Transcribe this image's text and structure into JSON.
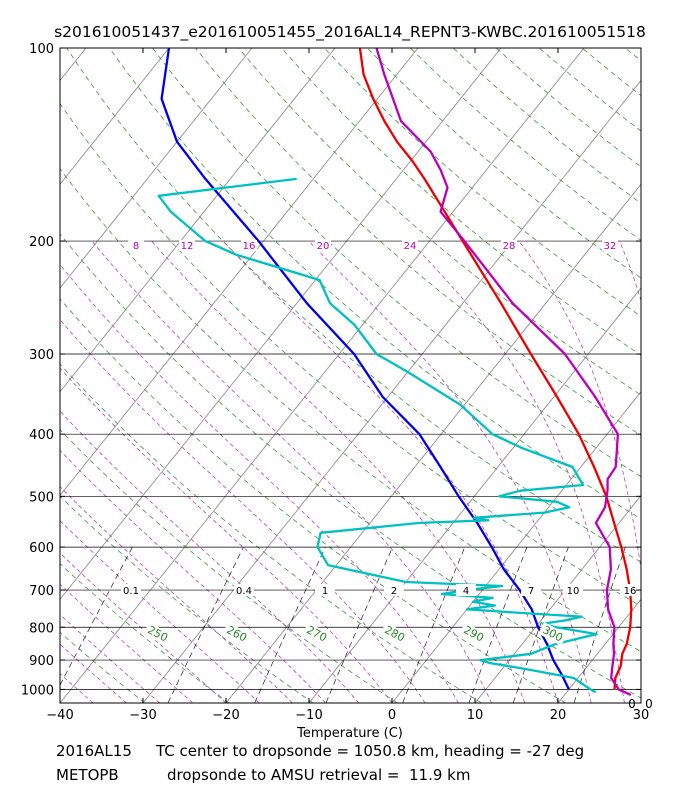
{
  "chart_data": {
    "type": "line",
    "title": "s201610051437_e201610051455_2016AL14_REPNT3-KWBC.201610051518",
    "xlabel": "Temperature (C)",
    "ylabel": "",
    "xlim": [
      -40,
      30
    ],
    "ylim": [
      1050,
      100
    ],
    "y_scale": "log",
    "x_ticks": [
      -40,
      -30,
      -20,
      -10,
      0,
      10,
      20,
      30
    ],
    "x_tick_labels": [
      "−40",
      "−30",
      "−20",
      "−10",
      "0",
      "10",
      "20",
      "30"
    ],
    "y_ticks": [
      1000,
      900,
      800,
      700,
      600,
      500,
      400,
      300,
      200,
      100
    ],
    "y_tick_labels": [
      "1000",
      "900",
      "800",
      "700",
      "600",
      "500",
      "400",
      "300",
      "200",
      "100"
    ],
    "isobar_grid": [
      1000,
      900,
      800,
      700,
      600,
      500,
      400,
      300,
      200
    ],
    "skew_guides": {
      "isotherm_color": "#909090",
      "dry_adiabat_color": "#3a9a3a",
      "moist_adiabat_color": "#c040c0",
      "mixing_ratio_color": "#222222"
    },
    "mixing_ratio_labels": [
      "0.1",
      "0.4",
      "1",
      "2",
      "4",
      "7",
      "10",
      "16"
    ],
    "moist_labels": [
      "8",
      "12",
      "16",
      "20",
      "24",
      "28",
      "32"
    ],
    "dry_labels": [
      "250",
      "260",
      "270",
      "280",
      "290",
      "300"
    ],
    "corner_labels": [
      "0",
      "0"
    ],
    "series": [
      {
        "color": "#ee0000",
        "p": [
          1000,
          960,
          920,
          880,
          850,
          800,
          750,
          700,
          650,
          600,
          550,
          500,
          450,
          400,
          350,
          300,
          250,
          200,
          180,
          160,
          150,
          140,
          130,
          120,
          110,
          100
        ],
        "t": [
          25.5,
          24.5,
          24.0,
          23.0,
          22.6,
          21.4,
          19.8,
          17.8,
          15.4,
          12.6,
          9.4,
          5.9,
          1.6,
          -3.4,
          -9.6,
          -16.9,
          -25.4,
          -36.0,
          -41.0,
          -46.6,
          -49.8,
          -53.5,
          -57.0,
          -60.5,
          -64.0,
          -67.0
        ]
      },
      {
        "color": "#bb00bb",
        "p": [
          1020,
          1000,
          960,
          920,
          880,
          850,
          800,
          750,
          700,
          650,
          600,
          550,
          520,
          490,
          470,
          450,
          400,
          350,
          300,
          250,
          200,
          180,
          165,
          155,
          145,
          130,
          110,
          100
        ],
        "t": [
          28.0,
          26.0,
          24.0,
          23.0,
          22.0,
          21.0,
          19.5,
          17.0,
          15.0,
          13.5,
          11.2,
          7.2,
          6.8,
          5.5,
          4.4,
          4.2,
          1.3,
          -5.0,
          -12.8,
          -24.0,
          -35.8,
          -41.5,
          -43.0,
          -45.5,
          -48.5,
          -55.0,
          -61.5,
          -65.0
        ]
      },
      {
        "color": "#0000ee",
        "p": [
          1000,
          950,
          900,
          850,
          800,
          750,
          700,
          650,
          600,
          550,
          500,
          450,
          400,
          350,
          300,
          250,
          200,
          160,
          140,
          120,
          100
        ],
        "t": [
          20.0,
          17.8,
          15.3,
          13.0,
          10.3,
          7.8,
          4.5,
          0.6,
          -3.0,
          -7.1,
          -11.9,
          -16.9,
          -22.6,
          -30.6,
          -38.2,
          -48.8,
          -60.6,
          -73.0,
          -80.0,
          -86.0,
          -90.0
        ]
      },
      {
        "color": "#00c0c0",
        "p": [
          1010,
          1000,
          960,
          930,
          910,
          900,
          880,
          850,
          820,
          800,
          790,
          780,
          770,
          760,
          750,
          740,
          730,
          720,
          710,
          700,
          690,
          680,
          640,
          600,
          570,
          550,
          545,
          540,
          530,
          520,
          510,
          500,
          490,
          480,
          450,
          420,
          400,
          360,
          320,
          300,
          270,
          250,
          230,
          210,
          200,
          180,
          170,
          160
        ],
        "t": [
          23.5,
          22.6,
          19.5,
          13.0,
          8.0,
          6.5,
          12.0,
          14.0,
          18.0,
          12.5,
          10.5,
          13.0,
          14.5,
          7.0,
          0.0,
          3.0,
          0.0,
          2.0,
          -4.5,
          -2.0,
          2.0,
          -10.0,
          -21.0,
          -24.0,
          -25.0,
          -14.0,
          -6.0,
          -8.0,
          0.0,
          2.5,
          0.5,
          -7.0,
          -5.0,
          2.0,
          -1.0,
          -9.0,
          -13.8,
          -20.5,
          -30.0,
          -35.5,
          -41.0,
          -46.0,
          -49.5,
          -62.0,
          -67.0,
          -74.0,
          -77.0,
          -62.0
        ]
      }
    ]
  },
  "caption": {
    "line1_left": "2016AL15",
    "line1_right": "TC center to dropsonde = 1050.8 km, heading = -27 deg",
    "line2_left": "METOPB",
    "line2_right": "dropsonde to AMSU retrieval =  11.9 km"
  }
}
